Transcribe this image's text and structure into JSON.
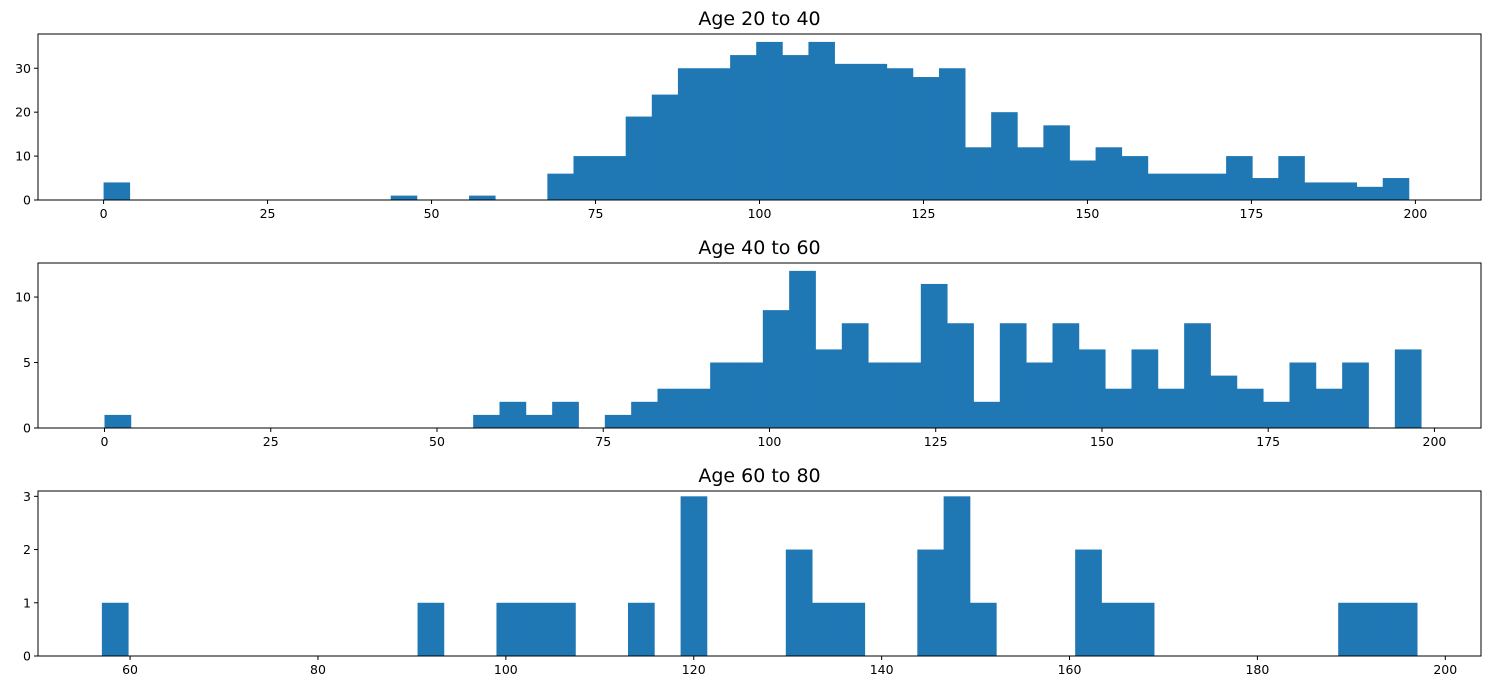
{
  "chart_data": [
    {
      "type": "bar",
      "title": "Age 20 to 40",
      "xlabel": "",
      "ylabel": "",
      "xlim": [
        -10,
        210
      ],
      "ylim": [
        0,
        37.8
      ],
      "xticks": [
        0,
        25,
        50,
        75,
        100,
        125,
        150,
        175,
        200
      ],
      "yticks": [
        0,
        10,
        20,
        30
      ],
      "grid": false,
      "color": "#1f77b4",
      "bins": {
        "start": 0,
        "width": 3.98,
        "counts": [
          4,
          0,
          0,
          0,
          0,
          0,
          0,
          0,
          0,
          0,
          0,
          1,
          0,
          0,
          1,
          0,
          0,
          6,
          10,
          10,
          19,
          24,
          30,
          30,
          33,
          36,
          33,
          36,
          31,
          31,
          30,
          28,
          30,
          12,
          20,
          12,
          17,
          9,
          12,
          10,
          6,
          6,
          6,
          10,
          5,
          10,
          4,
          4,
          3,
          5
        ]
      }
    },
    {
      "type": "bar",
      "title": "Age 40 to 60",
      "xlabel": "",
      "ylabel": "",
      "xlim": [
        -10,
        207
      ],
      "ylim": [
        0,
        12.6
      ],
      "xticks": [
        0,
        25,
        50,
        75,
        100,
        125,
        150,
        175,
        200
      ],
      "yticks": [
        0,
        5,
        10
      ],
      "grid": false,
      "color": "#1f77b4",
      "bins": {
        "start": 0,
        "width": 3.96,
        "counts": [
          1,
          0,
          0,
          0,
          0,
          0,
          0,
          0,
          0,
          0,
          0,
          0,
          0,
          0,
          1,
          2,
          1,
          2,
          0,
          1,
          2,
          3,
          3,
          5,
          5,
          9,
          12,
          6,
          8,
          5,
          5,
          11,
          8,
          2,
          8,
          5,
          8,
          6,
          3,
          6,
          3,
          8,
          4,
          3,
          2,
          5,
          3,
          5,
          0,
          6
        ]
      }
    },
    {
      "type": "bar",
      "title": "Age 60 to 80",
      "xlabel": "",
      "ylabel": "",
      "xlim": [
        50.2,
        203.8
      ],
      "ylim": [
        0,
        3.1
      ],
      "xticks": [
        60,
        80,
        100,
        120,
        140,
        160,
        180,
        200
      ],
      "yticks": [
        0,
        1,
        2,
        3
      ],
      "grid": false,
      "color": "#1f77b4",
      "bins": {
        "start": 57,
        "width": 2.8,
        "counts": [
          1,
          0,
          0,
          0,
          0,
          0,
          0,
          0,
          0,
          0,
          0,
          0,
          1,
          0,
          0,
          1,
          1,
          1,
          0,
          0,
          1,
          0,
          3,
          0,
          0,
          0,
          2,
          1,
          1,
          0,
          0,
          2,
          3,
          1,
          0,
          0,
          0,
          2,
          1,
          1,
          0,
          0,
          0,
          0,
          0,
          0,
          0,
          1,
          1,
          1
        ]
      }
    }
  ]
}
